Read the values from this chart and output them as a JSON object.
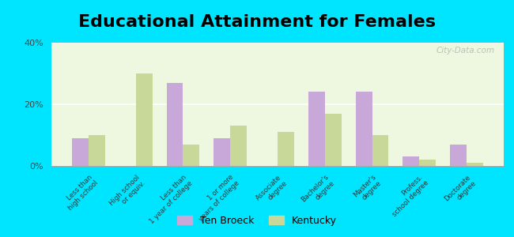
{
  "title": "Educational Attainment for Females",
  "categories": [
    "Less than\nhigh school",
    "High school\nor equiv.",
    "Less than\n1 year of college",
    "1 or more\nyears of college",
    "Associate\ndegree",
    "Bachelor's\ndegree",
    "Master's\ndegree",
    "Profess.\nschool degree",
    "Doctorate\ndegree"
  ],
  "ten_broeck": [
    9.0,
    0.0,
    27.0,
    9.0,
    0.0,
    24.0,
    24.0,
    3.0,
    7.0
  ],
  "kentucky": [
    10.0,
    30.0,
    7.0,
    13.0,
    11.0,
    17.0,
    10.0,
    2.0,
    1.0
  ],
  "bar_color_tb": "#c8a8d8",
  "bar_color_ky": "#c8d898",
  "bg_outer": "#00e5ff",
  "bg_plot": "#eef8e0",
  "ylim": [
    0,
    40
  ],
  "yticks": [
    0,
    20,
    40
  ],
  "ytick_labels": [
    "0%",
    "20%",
    "40%"
  ],
  "legend_tb": "Ten Broeck",
  "legend_ky": "Kentucky",
  "title_fontsize": 16,
  "bar_width": 0.35
}
